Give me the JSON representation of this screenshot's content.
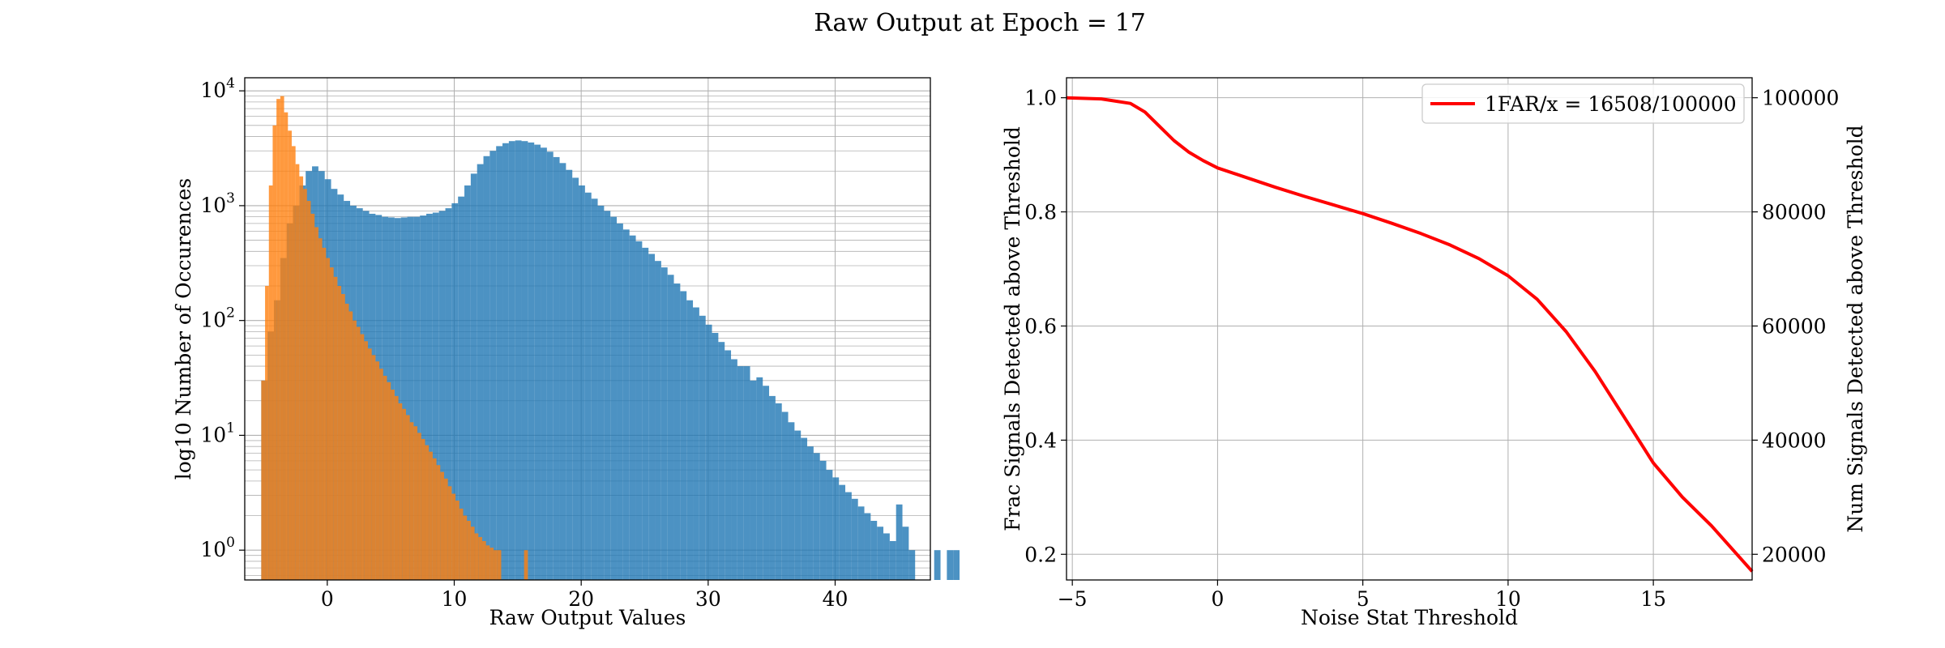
{
  "figure": {
    "title": "Raw Output at Epoch = 17"
  },
  "chart_data": [
    {
      "type": "histogram",
      "xlabel": "Raw Output Values",
      "ylabel": "log10 Number of Occurences",
      "xlim": [
        -6.5,
        47.5
      ],
      "ylim": [
        0.55,
        13000
      ],
      "yscale": "log",
      "grid": true,
      "xticks": [
        0,
        10,
        20,
        30,
        40
      ],
      "yticks": [
        {
          "base": "10",
          "exp": "0",
          "value": 1
        },
        {
          "base": "10",
          "exp": "1",
          "value": 10
        },
        {
          "base": "10",
          "exp": "2",
          "value": 100
        },
        {
          "base": "10",
          "exp": "3",
          "value": 1000
        },
        {
          "base": "10",
          "exp": "4",
          "value": 10000
        }
      ],
      "series": [
        {
          "color": "#1f77b4",
          "alpha": 0.8,
          "bin_start": -5.2,
          "bin_width": 0.5,
          "values": [
            30,
            80,
            150,
            350,
            700,
            1000,
            1500,
            2000,
            2200,
            2000,
            1700,
            1400,
            1250,
            1100,
            1000,
            950,
            900,
            850,
            830,
            800,
            790,
            780,
            790,
            800,
            800,
            820,
            850,
            870,
            900,
            950,
            1050,
            1200,
            1500,
            1900,
            2300,
            2700,
            3000,
            3300,
            3500,
            3650,
            3700,
            3650,
            3550,
            3400,
            3200,
            2950,
            2650,
            2350,
            2050,
            1750,
            1500,
            1300,
            1150,
            1000,
            900,
            800,
            700,
            620,
            550,
            490,
            430,
            380,
            330,
            290,
            250,
            210,
            180,
            150,
            130,
            110,
            92,
            78,
            65,
            55,
            46,
            40,
            40,
            30,
            32,
            27,
            22,
            19,
            16,
            13,
            11,
            9.5,
            8,
            7,
            6,
            5,
            4.3,
            3.7,
            3.2,
            2.8,
            2.4,
            2.1,
            1.8,
            1.6,
            1.4,
            1.2,
            2.5,
            1.6,
            1,
            0,
            0,
            0,
            1,
            0,
            1,
            1
          ]
        },
        {
          "color": "#ff7f0e",
          "alpha": 0.8,
          "bin_start": -5.2,
          "bin_width": 0.3,
          "values": [
            30,
            200,
            1500,
            5000,
            8500,
            9000,
            6500,
            4500,
            3300,
            2300,
            1800,
            1400,
            1100,
            850,
            650,
            520,
            430,
            350,
            290,
            240,
            200,
            170,
            140,
            120,
            100,
            88,
            76,
            66,
            57,
            50,
            44,
            38,
            33,
            29,
            25,
            22,
            19,
            17,
            15,
            13,
            12,
            10.5,
            9.3,
            8.2,
            7.2,
            6.3,
            5.5,
            4.8,
            4.2,
            3.6,
            3.1,
            2.7,
            2.3,
            2,
            1.8,
            1.6,
            1.4,
            1.3,
            1.2,
            1.1,
            1.05,
            1,
            1,
            0,
            0,
            0,
            0,
            0,
            0,
            1
          ]
        }
      ]
    },
    {
      "type": "line",
      "xlabel": "Noise Stat Threshold",
      "ylabel": "Frac Signals Detected above Threshold",
      "ylabel_right": "Num Signals Detected above Threshold",
      "xlim": [
        -5.2,
        18.4
      ],
      "ylim": [
        0.155,
        1.035
      ],
      "ylim_right": [
        15500,
        103500
      ],
      "grid": true,
      "xticks": [
        -5,
        0,
        5,
        10,
        15
      ],
      "yticks": [
        0.2,
        0.4,
        0.6,
        0.8,
        1.0
      ],
      "yticks_right": [
        20000,
        40000,
        60000,
        80000,
        100000
      ],
      "legend_location": "upper right",
      "series": [
        {
          "name": "1FAR/x = 16508/100000",
          "color": "#ff0000",
          "x": [
            -5.2,
            -4,
            -3,
            -2.5,
            -2,
            -1.5,
            -1,
            -0.5,
            0,
            1,
            2,
            3,
            4,
            5,
            6,
            7,
            8,
            9,
            10,
            11,
            12,
            13,
            14,
            15,
            16,
            17,
            18.4
          ],
          "y": [
            1.0,
            0.998,
            0.99,
            0.975,
            0.95,
            0.925,
            0.905,
            0.89,
            0.877,
            0.86,
            0.843,
            0.827,
            0.812,
            0.797,
            0.78,
            0.762,
            0.742,
            0.718,
            0.688,
            0.647,
            0.59,
            0.52,
            0.44,
            0.36,
            0.3,
            0.25,
            0.17
          ]
        }
      ]
    }
  ]
}
